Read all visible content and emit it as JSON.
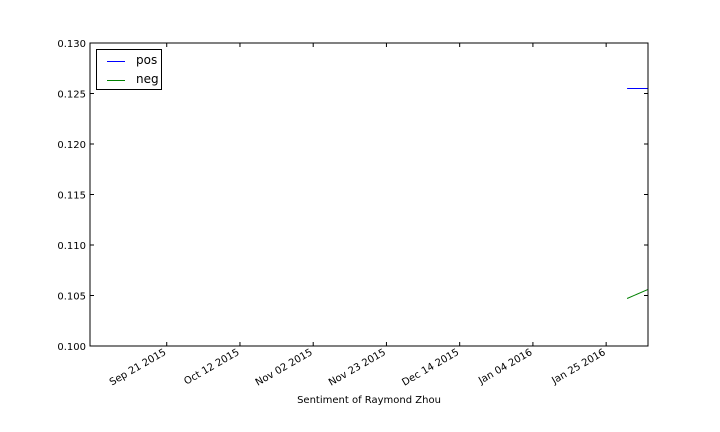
{
  "chart_data": {
    "type": "line",
    "title": "",
    "xlabel": "Sentiment of Raymond Zhou",
    "ylabel": "",
    "x_tick_labels": [
      "Sep 21 2015",
      "Oct 12 2015",
      "Nov 02 2015",
      "Nov 23 2015",
      "Dec 14 2015",
      "Jan 04 2016",
      "Jan 25 2016"
    ],
    "x_tick_dates": [
      "2015-09-21",
      "2015-10-12",
      "2015-11-02",
      "2015-11-23",
      "2015-12-14",
      "2016-01-04",
      "2016-01-25"
    ],
    "x_range": [
      "2015-08-30",
      "2016-02-06"
    ],
    "y_ticks": [
      "0.100",
      "0.105",
      "0.110",
      "0.115",
      "0.120",
      "0.125",
      "0.130"
    ],
    "ylim": [
      0.1,
      0.13
    ],
    "grid": false,
    "legend_position": "top-left",
    "series": [
      {
        "name": "pos",
        "color": "#0000ff",
        "points": [
          {
            "x": "2016-01-31",
            "y": 0.1255
          },
          {
            "x": "2016-02-06",
            "y": 0.1255
          }
        ]
      },
      {
        "name": "neg",
        "color": "#008000",
        "points": [
          {
            "x": "2016-01-31",
            "y": 0.1047
          },
          {
            "x": "2016-02-06",
            "y": 0.1056
          }
        ]
      }
    ]
  }
}
